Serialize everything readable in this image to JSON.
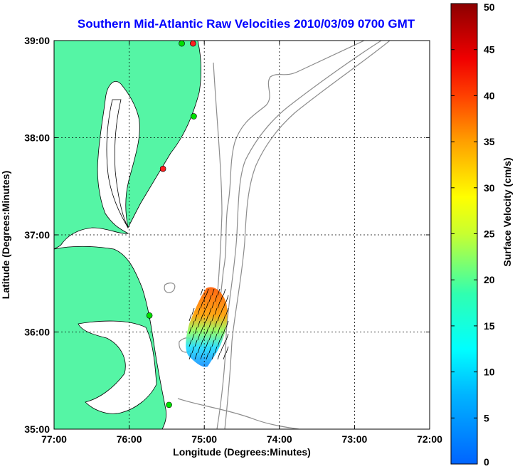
{
  "title": "Southern Mid-Atlantic Raw Velocities 2010/03/09 0700 GMT",
  "xlabel": "Longitude (Degrees:Minutes)",
  "ylabel": "Latitude (Degrees:Minutes)",
  "x_ticks": [
    "77:00",
    "76:00",
    "75:00",
    "74:00",
    "73:00",
    "72:00"
  ],
  "y_ticks": [
    "39:00",
    "38:00",
    "37:00",
    "36:00",
    "35:00"
  ],
  "colorbar": {
    "label": "Surface Velocity (cm/s)",
    "ticks": [
      "50",
      "45",
      "40",
      "35",
      "30",
      "25",
      "20",
      "15",
      "10",
      "5",
      "0"
    ],
    "min": 0,
    "max": 50
  },
  "colors": {
    "land": "#55f5a5",
    "water": "#ffffff",
    "bathymetry": "#8c8c8c",
    "title": "#0000ff",
    "site_active": "#00e000",
    "site_other": "#ff2020"
  },
  "map_extent": {
    "lon": [
      -77,
      -72
    ],
    "lat": [
      35,
      39
    ]
  },
  "grid": true,
  "sites": [
    {
      "lon": -75.15,
      "lat": 38.97,
      "status": "other"
    },
    {
      "lon": -75.3,
      "lat": 38.97,
      "status": "active"
    },
    {
      "lon": -75.14,
      "lat": 38.22,
      "status": "active"
    },
    {
      "lon": -75.55,
      "lat": 37.68,
      "status": "other"
    },
    {
      "lon": -75.73,
      "lat": 36.17,
      "status": "active"
    },
    {
      "lon": -75.47,
      "lat": 35.25,
      "status": "active"
    }
  ]
}
